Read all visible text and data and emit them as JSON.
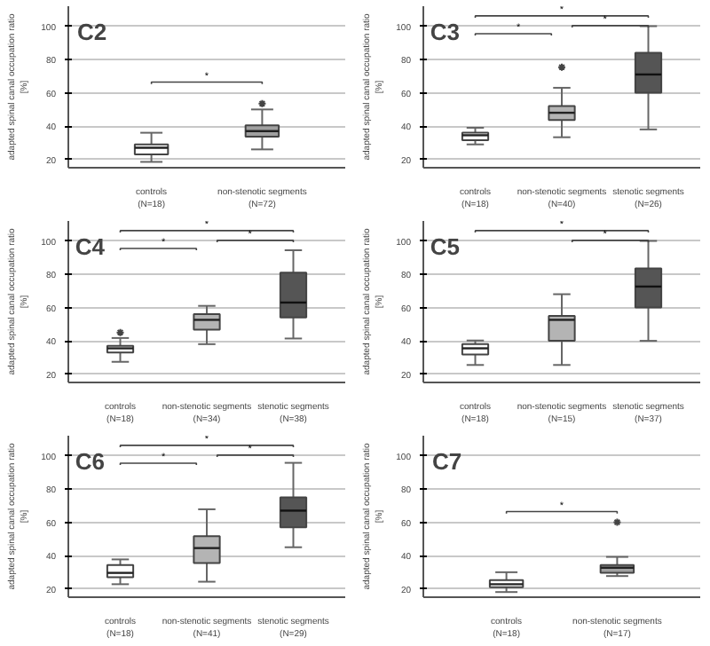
{
  "chart_data": [
    {
      "type": "box",
      "title": "C2",
      "ylabel": "adapted spinal canal occupation ratio\n[%]",
      "categories": [
        "controls\n(N=18)",
        "non-stenotic segments\n(N=72)"
      ],
      "colors": [
        "#ffffff",
        "#a0a0a0"
      ],
      "boxes": [
        {
          "low": 18.5,
          "q1": 23,
          "median": 27,
          "q3": 29,
          "high": 36
        },
        {
          "low": 26,
          "q1": 33.6,
          "median": 37,
          "q3": 40.5,
          "high": 50,
          "outliers": [
            53.5
          ]
        }
      ],
      "ylim": [
        15,
        112
      ],
      "yticks": [
        20,
        40,
        60,
        80,
        100
      ],
      "grid": "y",
      "marker": "star",
      "annotations": [
        "*"
      ]
    },
    {
      "type": "box",
      "title": "C3",
      "ylabel": "adapted spinal canal occupation ratio\n[%]",
      "categories": [
        "controls\n(N=18)",
        "non-stenotic segments\n(N=40)",
        "stenotic segments\n(N=26)"
      ],
      "colors": [
        "#ffffff",
        "#b4b4b4",
        "#555555"
      ],
      "boxes": [
        {
          "low": 29,
          "q1": 31.5,
          "median": 34.5,
          "q3": 36,
          "high": 39
        },
        {
          "low": 33.3,
          "q1": 43.6,
          "median": 48,
          "q3": 52,
          "high": 63,
          "outliers": [
            75.4
          ]
        },
        {
          "low": 38,
          "q1": 60,
          "median": 71,
          "q3": 84,
          "high": 100
        }
      ],
      "ylim": [
        15,
        112
      ],
      "yticks": [
        20,
        40,
        60,
        80,
        100
      ],
      "grid": "y",
      "marker": "star",
      "annotations": [
        "*",
        "*",
        "*"
      ]
    },
    {
      "type": "box",
      "title": "C4",
      "ylabel": "adapted spinal canal occupation ratio\n[%]",
      "categories": [
        "controls\n(N=18)",
        "non-stenotic segments\n(N=34)",
        "stenotic segments\n(N=38)"
      ],
      "colors": [
        "#ffffff",
        "#b4b4b4",
        "#555555"
      ],
      "boxes": [
        {
          "low": 27.4,
          "q1": 33,
          "median": 35.5,
          "q3": 37,
          "high": 41.7,
          "outliers": [
            45
          ]
        },
        {
          "low": 38,
          "q1": 46.7,
          "median": 52.6,
          "q3": 56,
          "high": 61
        },
        {
          "low": 41.4,
          "q1": 54,
          "median": 63,
          "q3": 81,
          "high": 94.4
        }
      ],
      "ylim": [
        15,
        112
      ],
      "yticks": [
        20,
        40,
        60,
        80,
        100
      ],
      "grid": "y",
      "marker": "star",
      "annotations": [
        "*",
        "*",
        "*"
      ]
    },
    {
      "type": "box",
      "title": "C5",
      "ylabel": "adapted spinal canal occupation ratio\n[%]",
      "categories": [
        "controls\n(N=18)",
        "non-stenotic segments\n(N=15)",
        "stenotic segments\n(N=37)"
      ],
      "colors": [
        "#ffffff",
        "#b4b4b4",
        "#555555"
      ],
      "boxes": [
        {
          "low": 25.5,
          "q1": 31.8,
          "median": 35.5,
          "q3": 38,
          "high": 40.2
        },
        {
          "low": 25.5,
          "q1": 40,
          "median": 52.6,
          "q3": 55,
          "high": 68
        },
        {
          "low": 40,
          "q1": 60,
          "median": 72.6,
          "q3": 83.5,
          "high": 100
        }
      ],
      "ylim": [
        15,
        112
      ],
      "yticks": [
        20,
        40,
        60,
        80,
        100
      ],
      "grid": "y",
      "marker": "star",
      "annotations": [
        "*",
        "*"
      ]
    },
    {
      "type": "box",
      "title": "C6",
      "ylabel": "adapted spinal canal occupation ratio\n[%]",
      "categories": [
        "controls\n(N=18)",
        "non-stenotic segments\n(N=41)",
        "stenotic segments\n(N=29)"
      ],
      "colors": [
        "#ffffff",
        "#b4b4b4",
        "#555555"
      ],
      "boxes": [
        {
          "low": 22.8,
          "q1": 27,
          "median": 29.6,
          "q3": 34.3,
          "high": 37.7
        },
        {
          "low": 24.3,
          "q1": 35.5,
          "median": 44.5,
          "q3": 51.6,
          "high": 67.8
        },
        {
          "low": 45,
          "q1": 57,
          "median": 67,
          "q3": 75,
          "high": 95.7
        }
      ],
      "ylim": [
        15,
        112
      ],
      "yticks": [
        20,
        40,
        60,
        80,
        100
      ],
      "grid": "y",
      "marker": "star",
      "annotations": [
        "*",
        "*",
        "*"
      ]
    },
    {
      "type": "box",
      "title": "C7",
      "ylabel": "adapted spinal canal occupation ratio\n[%]",
      "categories": [
        "controls\n(N=18)",
        "non-stenotic segments\n(N=17)"
      ],
      "colors": [
        "#ffffff",
        "#a0a0a0"
      ],
      "boxes": [
        {
          "low": 18.1,
          "q1": 21,
          "median": 22.8,
          "q3": 25.3,
          "high": 30
        },
        {
          "low": 27.7,
          "q1": 29.6,
          "median": 32.7,
          "q3": 34.3,
          "high": 39.2,
          "outliers": [
            60
          ]
        }
      ],
      "ylim": [
        15,
        112
      ],
      "yticks": [
        20,
        40,
        60,
        80,
        100
      ],
      "grid": "y",
      "marker": "star",
      "annotations": [
        "*"
      ]
    }
  ]
}
